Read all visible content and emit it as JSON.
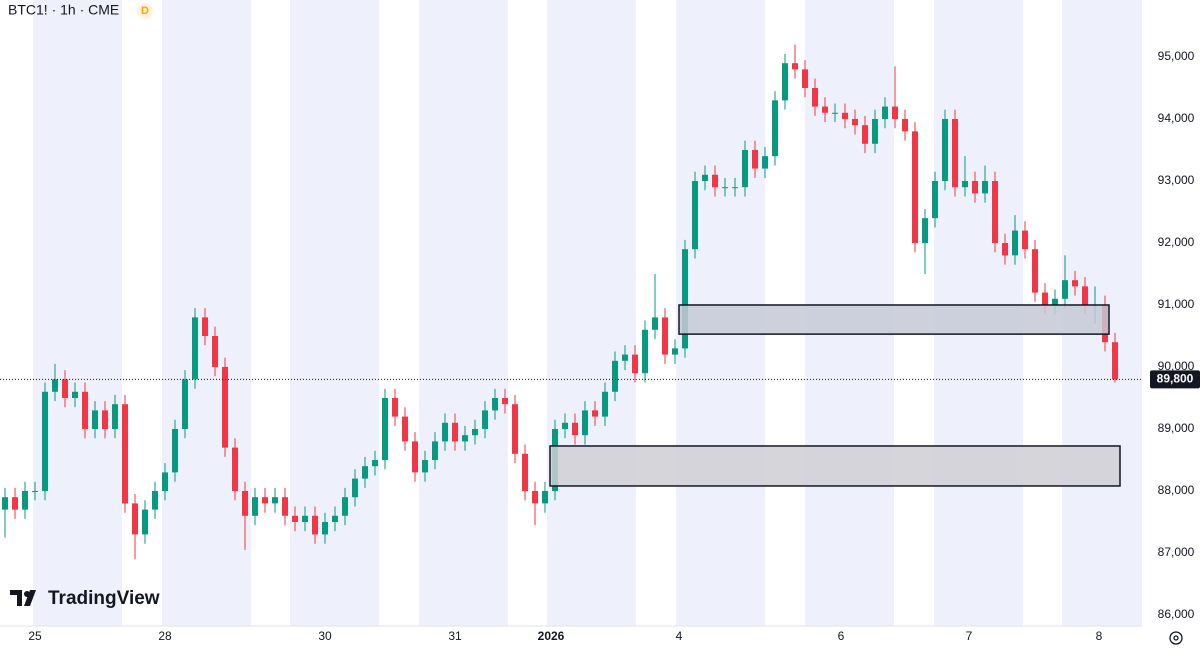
{
  "chart_data": {
    "type": "candlestick",
    "title": "BTC1! · 1h · CME",
    "badge": "D",
    "watermark": "TradingView",
    "up_color": "#089981",
    "down_color": "#f23645",
    "open": [
      87700,
      87900,
      87700,
      88000,
      88000,
      89600,
      89800,
      89500,
      89600,
      89000,
      89300,
      89000,
      89400,
      87800,
      87300,
      87700,
      88000,
      88300,
      89000,
      89800,
      90800,
      90500,
      90000,
      88700,
      88000,
      87600,
      87900,
      87800,
      87900,
      87600,
      87500,
      87600,
      87300,
      87500,
      87600,
      87900,
      88200,
      88400,
      88500,
      89500,
      89200,
      88800,
      88300,
      88500,
      88800,
      89100,
      88800,
      88900,
      89000,
      89300,
      89500,
      89400,
      88600,
      88000,
      87800,
      88000,
      89000,
      89100,
      88900,
      89300,
      89200,
      89600,
      90100,
      90200,
      89900,
      90600,
      90800,
      90200,
      90300,
      91900,
      93000,
      93100,
      92900,
      92900,
      92900,
      93500,
      93200,
      93400,
      94300,
      94900,
      94800,
      94500,
      94200,
      94100,
      94100,
      94000,
      93900,
      93600,
      94000,
      94200,
      94000,
      93800,
      92000,
      92400,
      93000,
      94000,
      92900,
      93000,
      92800,
      93000,
      92000,
      91800,
      92200,
      91900,
      91200,
      91000,
      91100,
      91400,
      91300,
      91000,
      91000,
      90400
    ],
    "high": [
      88050,
      88050,
      88150,
      88150,
      89750,
      90050,
      89950,
      89750,
      89750,
      89450,
      89450,
      89550,
      89550,
      87950,
      87850,
      88150,
      88450,
      89150,
      89950,
      90950,
      90950,
      90650,
      90150,
      88850,
      88150,
      88050,
      88050,
      88050,
      88050,
      87750,
      87750,
      87750,
      87650,
      87750,
      88050,
      88350,
      88550,
      88650,
      89650,
      89650,
      89350,
      88950,
      88650,
      88950,
      89250,
      89250,
      89050,
      89150,
      89450,
      89650,
      89650,
      89550,
      88750,
      88150,
      88150,
      89150,
      89250,
      89250,
      89450,
      89450,
      89750,
      90250,
      90350,
      90350,
      90750,
      91500,
      90950,
      90450,
      92050,
      93150,
      93250,
      93250,
      93050,
      93050,
      93650,
      93650,
      93550,
      94450,
      95050,
      95200,
      94950,
      94650,
      94350,
      94250,
      94250,
      94150,
      94050,
      94150,
      94350,
      94850,
      94150,
      93950,
      92550,
      93150,
      94150,
      94150,
      93400,
      93150,
      93250,
      93150,
      92150,
      92450,
      92350,
      92050,
      91350,
      91250,
      91800,
      91550,
      91450,
      91300,
      91150,
      90550
    ],
    "low": [
      87250,
      87550,
      87550,
      87850,
      87850,
      89450,
      89350,
      89350,
      88850,
      88850,
      88850,
      88850,
      87650,
      86900,
      87150,
      87550,
      87850,
      88150,
      88850,
      89650,
      90350,
      89850,
      88550,
      87850,
      87050,
      87450,
      87650,
      87650,
      87450,
      87350,
      87350,
      87150,
      87150,
      87350,
      87450,
      87750,
      88050,
      88250,
      88350,
      89050,
      88650,
      88150,
      88150,
      88350,
      88650,
      88650,
      88650,
      88750,
      88850,
      89150,
      89250,
      88450,
      87850,
      87450,
      87650,
      87850,
      88850,
      88750,
      88750,
      89050,
      89050,
      89450,
      89950,
      89750,
      89750,
      90450,
      90050,
      90050,
      90150,
      91750,
      92850,
      92750,
      92750,
      92750,
      92750,
      93050,
      93050,
      93250,
      94150,
      94650,
      94350,
      94050,
      93950,
      93950,
      93850,
      93750,
      93450,
      93450,
      93850,
      93850,
      93650,
      91850,
      91500,
      92250,
      92850,
      92750,
      92750,
      92650,
      92650,
      91850,
      91650,
      91650,
      91750,
      91050,
      90850,
      90850,
      90950,
      91150,
      90850,
      90700,
      90250,
      89750
    ],
    "close": [
      87900,
      87700,
      88000,
      88000,
      89600,
      89800,
      89500,
      89600,
      89000,
      89300,
      89000,
      89400,
      87800,
      87300,
      87700,
      88000,
      88300,
      89000,
      89800,
      90800,
      90500,
      90000,
      88700,
      88000,
      87600,
      87900,
      87800,
      87900,
      87600,
      87500,
      87600,
      87300,
      87500,
      87600,
      87900,
      88200,
      88400,
      88500,
      89500,
      89200,
      88800,
      88300,
      88500,
      88800,
      89100,
      88800,
      88900,
      89000,
      89300,
      89500,
      89400,
      88600,
      88000,
      87800,
      88000,
      89000,
      89100,
      88900,
      89300,
      89200,
      89600,
      90100,
      90200,
      89900,
      90600,
      90800,
      90200,
      90300,
      91900,
      93000,
      93100,
      92900,
      92900,
      92900,
      93500,
      93200,
      93400,
      94300,
      94900,
      94800,
      94500,
      94200,
      94100,
      94100,
      94000,
      93900,
      93600,
      94000,
      94200,
      94000,
      93800,
      92000,
      92400,
      93000,
      94000,
      92900,
      93000,
      92800,
      93000,
      92000,
      91800,
      92200,
      91900,
      91200,
      91000,
      91100,
      91400,
      91300,
      91000,
      91000,
      90400,
      89800
    ],
    "xlim": [
      -0.5,
      113.5
    ],
    "xticks": [
      {
        "value": 3,
        "label": "25"
      },
      {
        "value": 16,
        "label": "28"
      },
      {
        "value": 32,
        "label": "30"
      },
      {
        "value": 45,
        "label": "31"
      },
      {
        "value": 54.6,
        "label": "2026"
      },
      {
        "value": 67.4,
        "label": "4"
      },
      {
        "value": 83.6,
        "label": "6"
      },
      {
        "value": 96.4,
        "label": "7"
      },
      {
        "value": 109.4,
        "label": "8"
      }
    ],
    "ylim": [
      85758,
      95919
    ],
    "yticks": [
      {
        "value": 86000,
        "label": "86,000"
      },
      {
        "value": 87000,
        "label": "87,000"
      },
      {
        "value": 88000,
        "label": "88,000"
      },
      {
        "value": 89000,
        "label": "89,000"
      },
      {
        "value": 90000,
        "label": "90,000"
      },
      {
        "value": 91000,
        "label": "91,000"
      },
      {
        "value": 92000,
        "label": "92,000"
      },
      {
        "value": 93000,
        "label": "93,000"
      },
      {
        "value": 94000,
        "label": "94,000"
      },
      {
        "value": 95000,
        "label": "95,000"
      }
    ],
    "last_price": {
      "value": 89800,
      "label": "89,800"
    },
    "zones": [
      {
        "x_start": 67.4,
        "x_end": 110.4,
        "top": 91000,
        "bottom": 90530,
        "color": "#c5c9d6"
      },
      {
        "x_start": 54.5,
        "x_end": 111.5,
        "top": 88726,
        "bottom": 88081,
        "color": "#cfcfd3"
      }
    ]
  }
}
